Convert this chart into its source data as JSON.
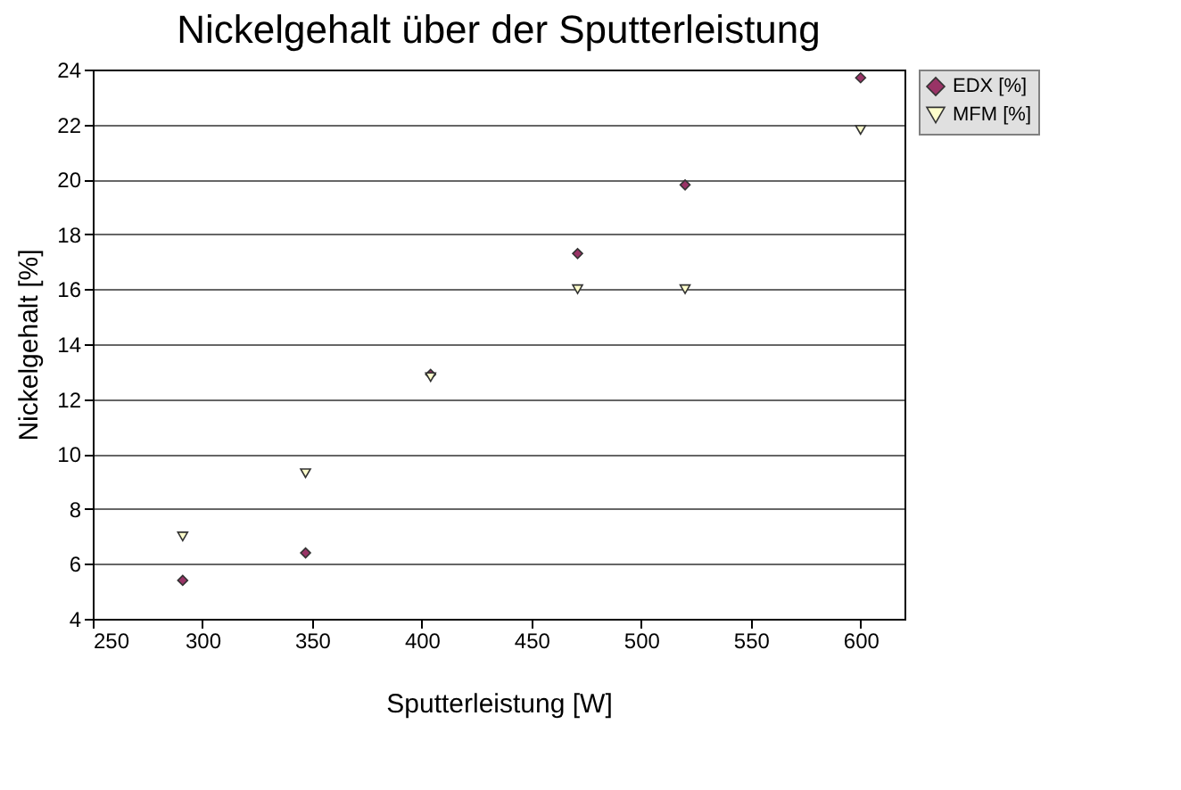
{
  "chart_data": {
    "type": "scatter",
    "title": "Nickelgehalt über der Sputterleistung",
    "xlabel": "Sputterleistung [W]",
    "ylabel": "Nickelgehalt [%]",
    "series": [
      {
        "name": "EDX [%]",
        "color": "#993366",
        "marker": "diamond",
        "x": [
          291,
          347,
          404,
          471,
          520,
          600
        ],
        "values": [
          5.4,
          6.4,
          12.9,
          17.3,
          19.8,
          23.7
        ]
      },
      {
        "name": "MFM [%]",
        "color": "#ffffcc",
        "marker": "triangle",
        "x": [
          291,
          347,
          404,
          471,
          520,
          600
        ],
        "values": [
          7.0,
          9.3,
          12.8,
          16.0,
          16.0,
          21.8
        ]
      }
    ],
    "xlim": [
      250,
      620
    ],
    "xticks": [
      250,
      300,
      350,
      400,
      450,
      500,
      550,
      600
    ],
    "ylim": [
      4,
      24
    ],
    "yticks": [
      4,
      6,
      8,
      10,
      12,
      14,
      16,
      18,
      20,
      22,
      24
    ],
    "grid": "y",
    "legend": "right"
  }
}
